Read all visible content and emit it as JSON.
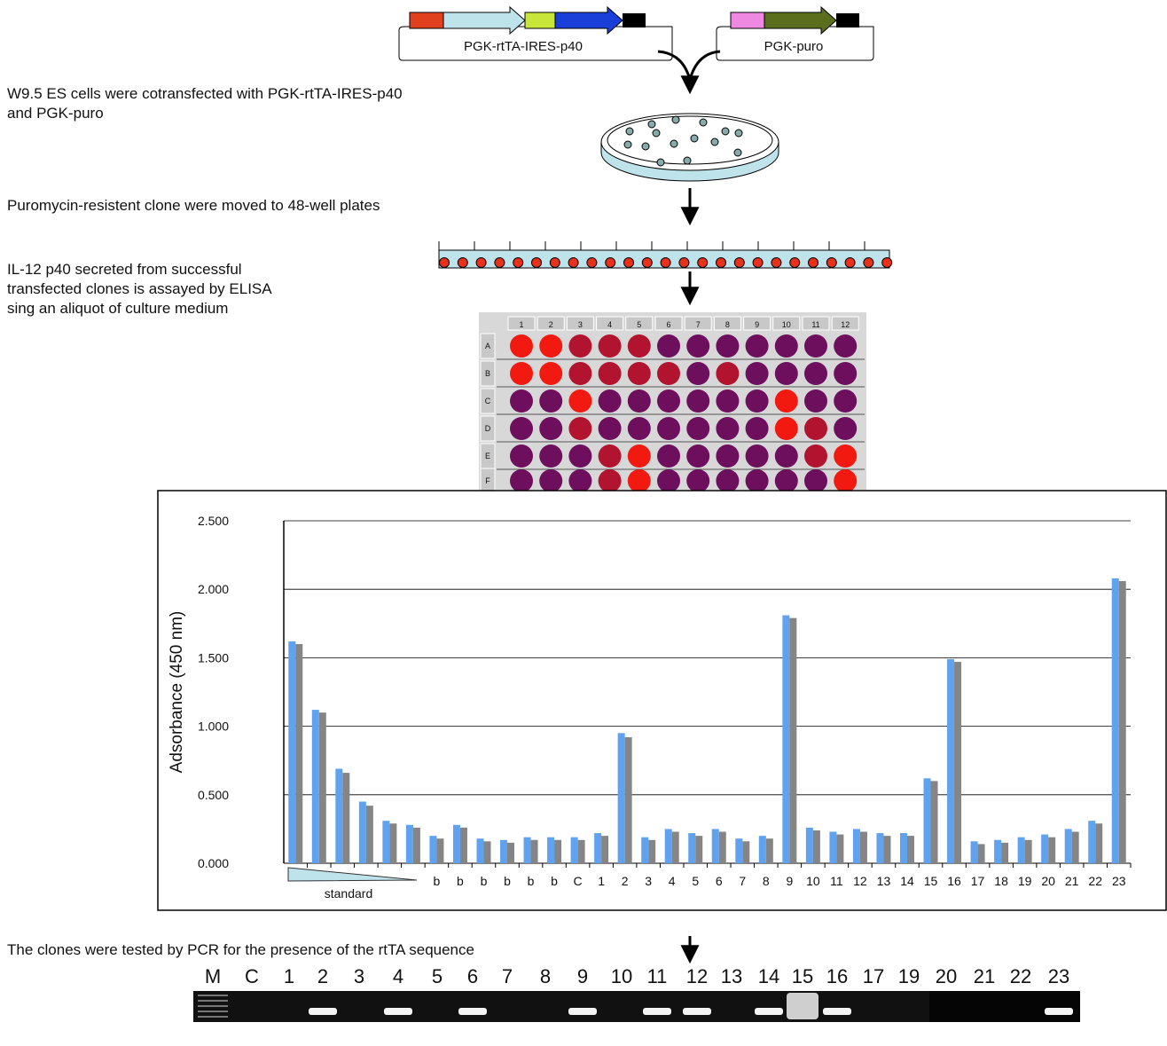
{
  "plasmids": [
    "PGK-rtTA-IRES-p40",
    "PGK-puro"
  ],
  "steps": [
    [
      "W9.5 ES cells were cotransfected with PGK-rtTA-IRES-p40",
      "and PGK-puro"
    ],
    [
      "Puromycin-resistent clone were moved to 48-well plates"
    ],
    [
      "IL-12 p40 secreted from successful",
      "transfected clones is assayed by ELISA",
      "sing an aliquot of culture medium"
    ],
    [
      "The clones were tested by PCR for the presence of the rtTA sequence"
    ]
  ],
  "plate": {
    "columns": [
      "1",
      "2",
      "3",
      "4",
      "5",
      "6",
      "7",
      "8",
      "9",
      "10",
      "11",
      "12"
    ],
    "rows": [
      "A",
      "B",
      "C",
      "D",
      "E",
      "F"
    ]
  },
  "chart_data": {
    "type": "bar",
    "y_label": "Adsorbance (450 nm)",
    "group_label": "standard",
    "categories": [
      null,
      null,
      null,
      null,
      null,
      null,
      "b",
      "b",
      "b",
      "b",
      "b",
      "b",
      "C",
      "1",
      "2",
      "3",
      "4",
      "5",
      "6",
      "7",
      "8",
      "9",
      "10",
      "11",
      "12",
      "13",
      "14",
      "15",
      "16",
      "17",
      "18",
      "19",
      "20",
      "21",
      "22",
      "23"
    ],
    "series": [
      {
        "color": "#5fa3f0",
        "values": [
          1.62,
          1.12,
          0.69,
          0.45,
          0.31,
          0.28,
          0.2,
          0.28,
          0.18,
          0.17,
          0.19,
          0.19,
          0.19,
          0.22,
          0.95,
          0.19,
          0.25,
          0.22,
          0.25,
          0.18,
          0.2,
          1.81,
          0.26,
          0.23,
          0.25,
          0.22,
          0.22,
          0.62,
          1.49,
          0.16,
          0.17,
          0.19,
          0.21,
          0.25,
          0.31,
          2.08
        ]
      },
      {
        "color": "#858585",
        "values": [
          1.6,
          1.1,
          0.66,
          0.42,
          0.29,
          0.26,
          0.18,
          0.26,
          0.16,
          0.15,
          0.17,
          0.17,
          0.17,
          0.2,
          0.92,
          0.17,
          0.23,
          0.2,
          0.23,
          0.16,
          0.18,
          1.79,
          0.24,
          0.21,
          0.23,
          0.2,
          0.2,
          0.6,
          1.47,
          0.14,
          0.15,
          0.17,
          0.19,
          0.23,
          0.29,
          2.06
        ]
      }
    ],
    "ylim": [
      0,
      2.5
    ],
    "yticks": [
      {
        "value": 0,
        "label": "0.000"
      },
      {
        "value": 0.5,
        "label": "0.500"
      },
      {
        "value": 1,
        "label": "1.000"
      },
      {
        "value": 1.5,
        "label": "1.500"
      },
      {
        "value": 2,
        "label": "2.000"
      },
      {
        "value": 2.5,
        "label": "2.500"
      }
    ],
    "grid": true
  },
  "gel": {
    "lanes": [
      "M",
      "C",
      "1",
      "2",
      "3",
      "4",
      "5",
      "6",
      "7",
      "8",
      "9",
      "10",
      "11",
      "12",
      "13",
      "14",
      "15",
      "16",
      "17",
      "19",
      "20",
      "21",
      "22",
      "23"
    ]
  }
}
